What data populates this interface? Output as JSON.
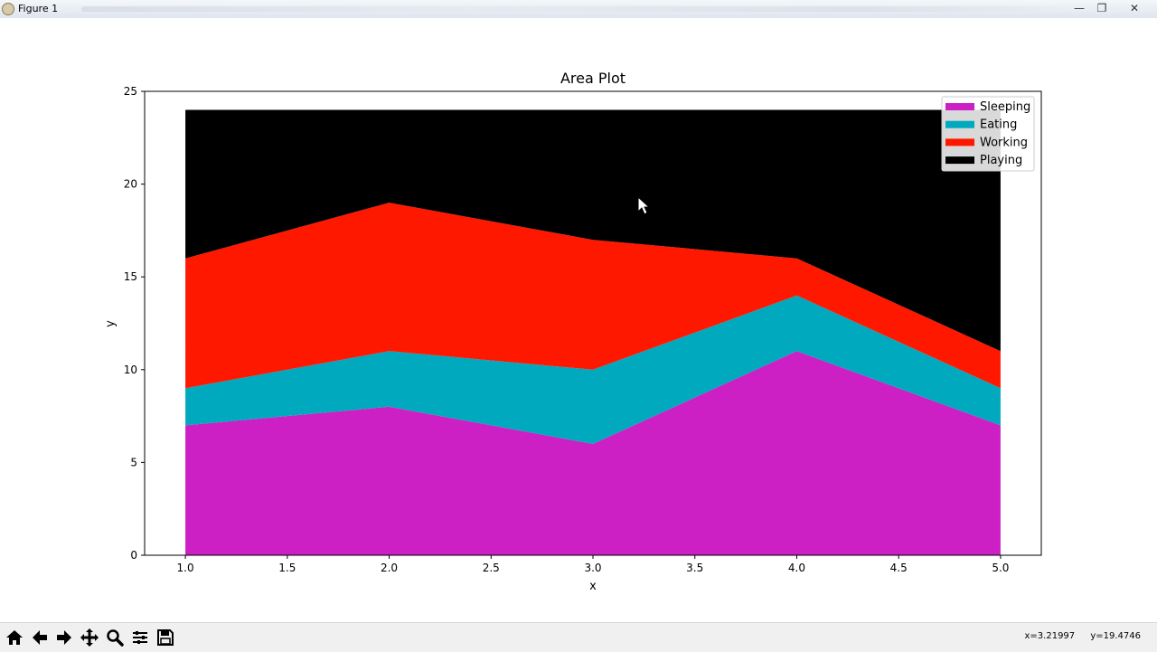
{
  "window": {
    "title": "Figure 1",
    "minimize_glyph": "—",
    "maximize_glyph": "❐",
    "close_glyph": "✕"
  },
  "toolbar": {
    "icons": [
      "home-icon",
      "back-arrow-icon",
      "forward-arrow-icon",
      "pan-move-icon",
      "zoom-magnifier-icon",
      "subplots-config-icon",
      "save-floppy-icon"
    ],
    "coord_x": "x=3.21997",
    "coord_y": "y=19.4746"
  },
  "colors": {
    "Sleeping": "#cc1fc4",
    "Eating": "#00a9bd",
    "Working": "#ff1800",
    "Playing": "#000000"
  },
  "chart_data": {
    "type": "area",
    "stacked": true,
    "title": "Area Plot",
    "xlabel": "x",
    "ylabel": "y",
    "x": [
      1,
      2,
      3,
      4,
      5
    ],
    "series": [
      {
        "name": "Sleeping",
        "values": [
          7,
          8,
          6,
          11,
          7
        ],
        "color": "#cc1fc4"
      },
      {
        "name": "Eating",
        "values": [
          2,
          3,
          4,
          3,
          2
        ],
        "color": "#00a9bd"
      },
      {
        "name": "Working",
        "values": [
          7,
          8,
          7,
          2,
          2
        ],
        "color": "#ff1800"
      },
      {
        "name": "Playing",
        "values": [
          8,
          5,
          7,
          8,
          13
        ],
        "color": "#000000"
      }
    ],
    "xlim": [
      0.8,
      5.2
    ],
    "ylim": [
      0,
      25
    ],
    "xticks": [
      "1.0",
      "1.5",
      "2.0",
      "2.5",
      "3.0",
      "3.5",
      "4.0",
      "4.5",
      "5.0"
    ],
    "yticks": [
      "0",
      "5",
      "10",
      "15",
      "20",
      "25"
    ],
    "legend_position": "upper right",
    "grid": false
  }
}
